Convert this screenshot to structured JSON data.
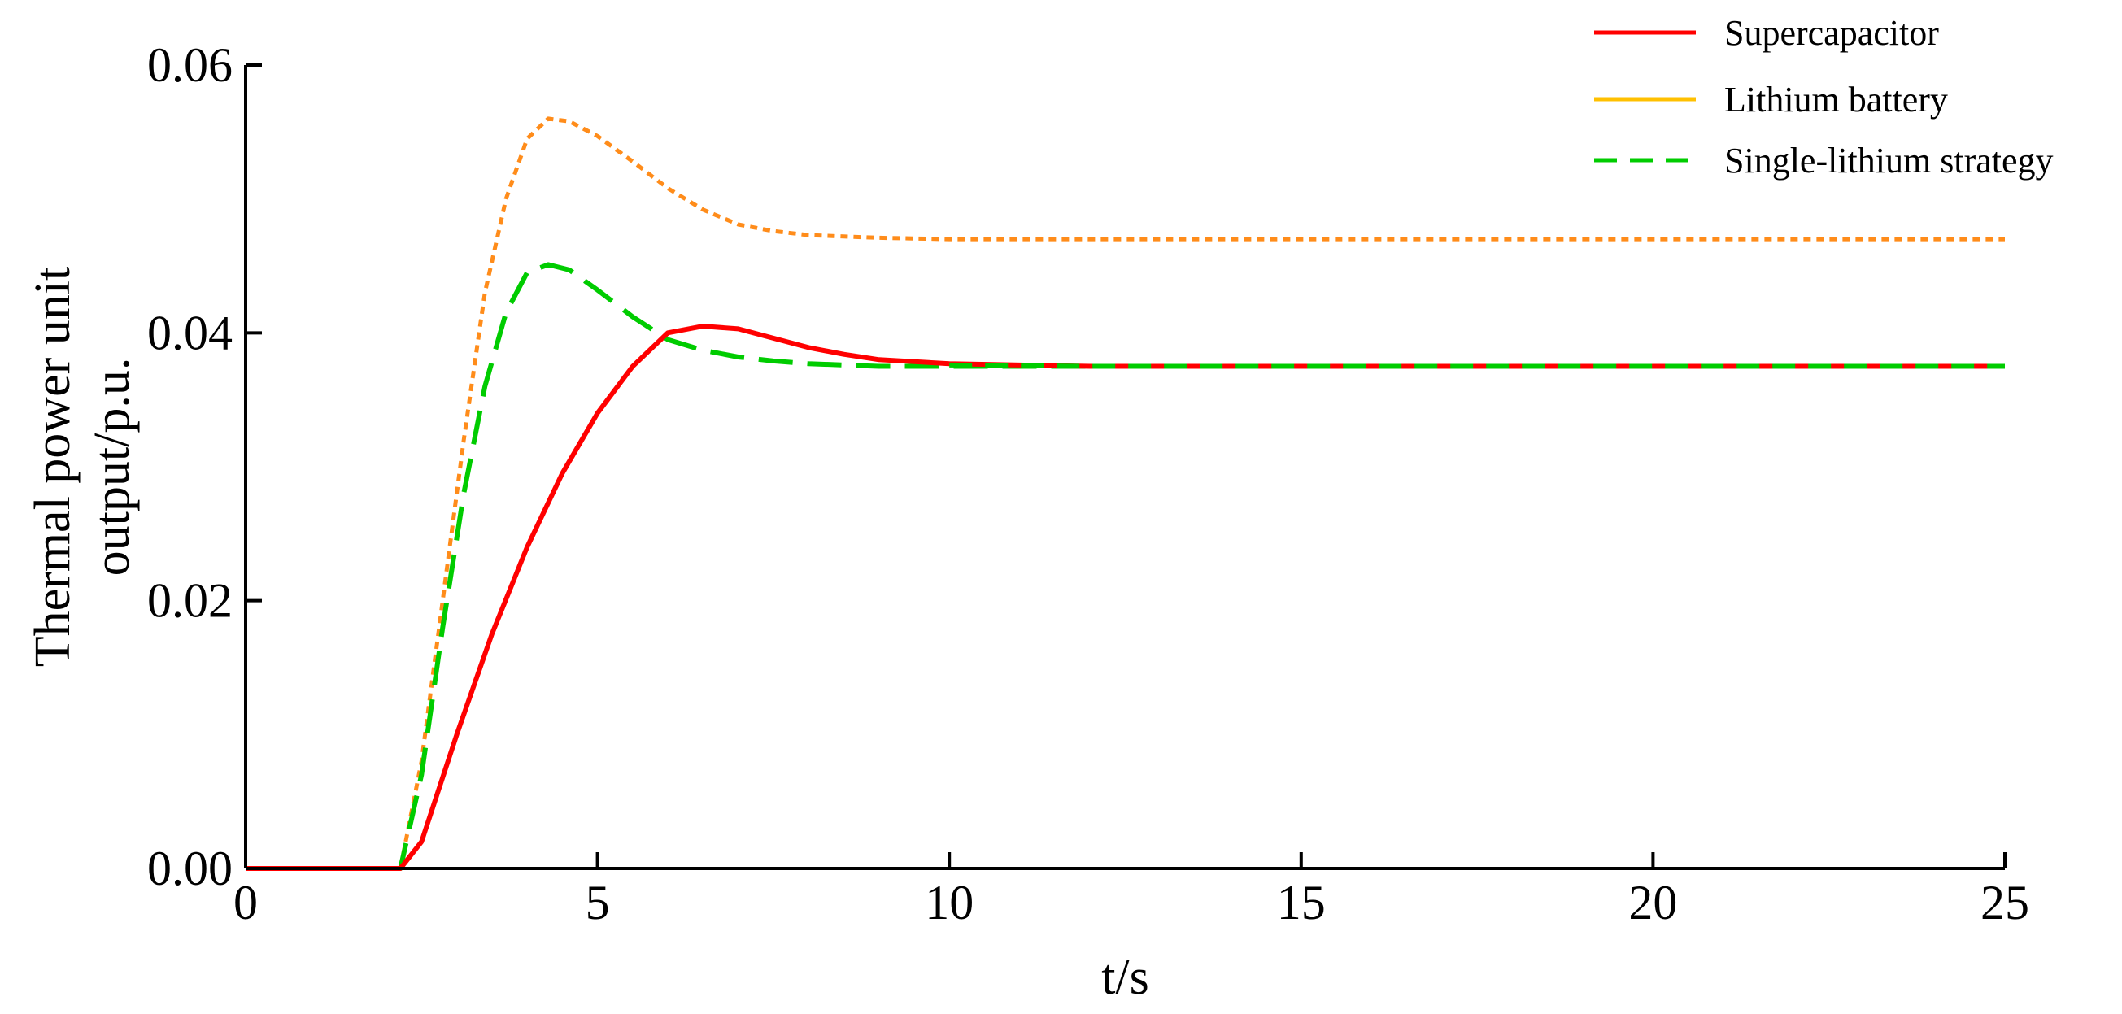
{
  "chart_data": {
    "type": "line",
    "title": "",
    "xlabel": "t/s",
    "ylabel_lines": [
      "Thermal power unit",
      "output/p.u."
    ],
    "xlim": [
      0,
      25
    ],
    "ylim": [
      0,
      0.06
    ],
    "xticks": [
      0,
      5,
      10,
      15,
      20,
      25
    ],
    "xtick_labels": [
      "0",
      "5",
      "10",
      "15",
      "20",
      "25"
    ],
    "yticks": [
      0,
      0.02,
      0.04,
      0.06
    ],
    "ytick_labels": [
      "0.00",
      "0.02",
      "0.04",
      "0.06"
    ],
    "grid": false,
    "legend_position": "top-right",
    "legend_entries": [
      {
        "label": "Supercapacitor",
        "color": "#ff0000",
        "style": "solid"
      },
      {
        "label": "Lithium battery",
        "color": "#ffc000",
        "style": "solid"
      },
      {
        "label": "Single-lithium strategy",
        "color": "#00cc00",
        "style": "dashed"
      }
    ],
    "series": [
      {
        "color": "#ff8c1a",
        "style": "dotted",
        "x": [
          0,
          2.2,
          2.5,
          2.8,
          3.1,
          3.4,
          3.7,
          4.0,
          4.3,
          4.6,
          5.0,
          5.5,
          6.0,
          6.5,
          7.0,
          7.5,
          8.0,
          8.5,
          9.0,
          10.0,
          12.0,
          15.0,
          20.0,
          25.0
        ],
        "y": [
          0,
          0,
          0.008,
          0.02,
          0.032,
          0.043,
          0.05,
          0.0545,
          0.056,
          0.0558,
          0.0547,
          0.0528,
          0.0508,
          0.0492,
          0.0481,
          0.0476,
          0.0473,
          0.0472,
          0.0471,
          0.047,
          0.047,
          0.047,
          0.047,
          0.047
        ]
      },
      {
        "color": "#00cc00",
        "style": "long-dashed",
        "x": [
          0,
          2.2,
          2.5,
          2.8,
          3.1,
          3.4,
          3.7,
          4.0,
          4.3,
          4.6,
          5.0,
          5.5,
          6.0,
          6.5,
          7.0,
          7.5,
          8.0,
          8.5,
          9.0,
          10.0,
          12.0,
          15.0,
          20.0,
          25.0
        ],
        "y": [
          0,
          0,
          0.007,
          0.018,
          0.028,
          0.036,
          0.0415,
          0.0445,
          0.0451,
          0.0447,
          0.0432,
          0.0412,
          0.0395,
          0.0387,
          0.0382,
          0.0379,
          0.0377,
          0.0376,
          0.0375,
          0.0375,
          0.0375,
          0.0375,
          0.0375,
          0.0375
        ]
      },
      {
        "color": "#ff0000",
        "style": "solid",
        "x": [
          0,
          2.2,
          2.5,
          3.0,
          3.5,
          4.0,
          4.5,
          5.0,
          5.5,
          6.0,
          6.5,
          7.0,
          7.5,
          8.0,
          8.5,
          9.0,
          10.0,
          11.0,
          12.0,
          15.0,
          20.0,
          25.0
        ],
        "y": [
          0,
          0,
          0.002,
          0.01,
          0.0175,
          0.024,
          0.0295,
          0.034,
          0.0375,
          0.04,
          0.0405,
          0.0403,
          0.0396,
          0.0389,
          0.0384,
          0.038,
          0.0377,
          0.0376,
          0.0375,
          0.0375,
          0.0375,
          0.0375
        ]
      },
      {
        "color": "#00cc00",
        "style": "dashed",
        "x": [
          10.0,
          12.0,
          15.0,
          20.0,
          25.0
        ],
        "y": [
          0.0376,
          0.0375,
          0.0375,
          0.0375,
          0.0375
        ]
      }
    ]
  }
}
